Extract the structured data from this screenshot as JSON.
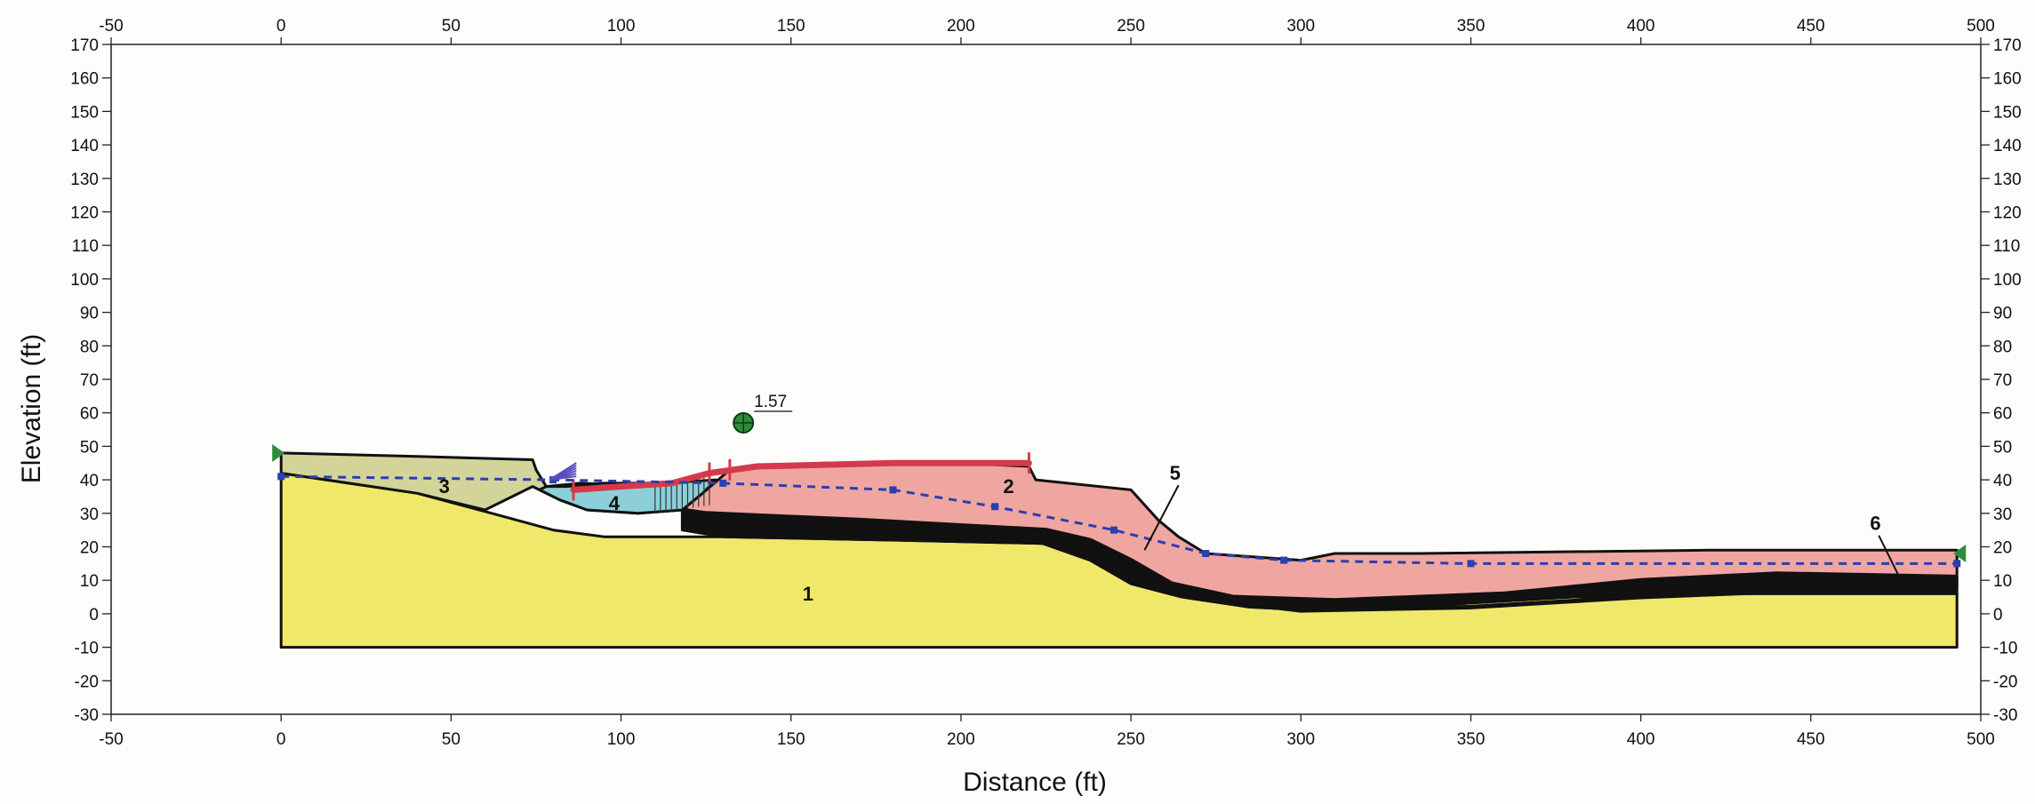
{
  "chart_data": {
    "type": "slope-stability-section",
    "xlabel": "Distance (ft)",
    "ylabel": "Elevation (ft)",
    "xlim": [
      -50,
      500
    ],
    "ylim": [
      -30,
      170
    ],
    "x_ticks": [
      -50,
      0,
      50,
      100,
      150,
      200,
      250,
      300,
      350,
      400,
      450,
      500
    ],
    "y_ticks": [
      -30,
      -20,
      -10,
      0,
      10,
      20,
      30,
      40,
      50,
      60,
      70,
      80,
      90,
      100,
      110,
      120,
      130,
      140,
      150,
      160,
      170
    ],
    "factor_of_safety": {
      "value": "1.57",
      "center": [
        136,
        57
      ]
    },
    "colors": {
      "material_1": "#f0e86a",
      "material_2": "#f0a6a0",
      "material_3": "#d3d49a",
      "material_4": "#8ccfd8",
      "seam": "#111111",
      "water_table": "#2a3fb0",
      "slip_surface": "#d43a4c",
      "center_marker": "#2e8b3a"
    },
    "regions": [
      {
        "id": "1",
        "label": "1",
        "label_pos": [
          155,
          4
        ],
        "polygon": [
          [
            0,
            -10
          ],
          [
            493,
            -10
          ],
          [
            493,
            6
          ],
          [
            430,
            6
          ],
          [
            380,
            5
          ],
          [
            330,
            2
          ],
          [
            305,
            1
          ],
          [
            285,
            2
          ],
          [
            265,
            5
          ],
          [
            250,
            9
          ],
          [
            238,
            16
          ],
          [
            224,
            21
          ],
          [
            180,
            22
          ],
          [
            130,
            23
          ],
          [
            95,
            23
          ],
          [
            80,
            25
          ],
          [
            62,
            30
          ],
          [
            40,
            36
          ],
          [
            0,
            42
          ]
        ]
      },
      {
        "id": "2",
        "label": "2",
        "label_pos": [
          214,
          36
        ],
        "polygon": [
          [
            118,
            31
          ],
          [
            124,
            36
          ],
          [
            132,
            43
          ],
          [
            160,
            45
          ],
          [
            200,
            45
          ],
          [
            220,
            44
          ],
          [
            222,
            40
          ],
          [
            250,
            37
          ],
          [
            258,
            28
          ],
          [
            264,
            23
          ],
          [
            272,
            18
          ],
          [
            300,
            16
          ],
          [
            310,
            18
          ],
          [
            335,
            18
          ],
          [
            420,
            19
          ],
          [
            493,
            19
          ],
          [
            493,
            11
          ],
          [
            440,
            12
          ],
          [
            400,
            10
          ],
          [
            360,
            6
          ],
          [
            310,
            4
          ],
          [
            280,
            5
          ],
          [
            262,
            9
          ],
          [
            250,
            16
          ],
          [
            238,
            22
          ],
          [
            225,
            25
          ],
          [
            170,
            28
          ],
          [
            125,
            29
          ]
        ]
      },
      {
        "id": "3",
        "label": "3",
        "label_pos": [
          48,
          36
        ],
        "polygon": [
          [
            0,
            42
          ],
          [
            0,
            48
          ],
          [
            40,
            47
          ],
          [
            74,
            46
          ],
          [
            75,
            43
          ],
          [
            78,
            38
          ],
          [
            88,
            39
          ],
          [
            110,
            38
          ],
          [
            122,
            35
          ],
          [
            118,
            31
          ],
          [
            105,
            30
          ],
          [
            90,
            31
          ],
          [
            82,
            34
          ],
          [
            76,
            37
          ],
          [
            74,
            38
          ],
          [
            60,
            31
          ],
          [
            40,
            36
          ]
        ]
      },
      {
        "id": "4",
        "label": "4",
        "label_pos": [
          98,
          31
        ],
        "polygon": [
          [
            76,
            37
          ],
          [
            82,
            34
          ],
          [
            90,
            31
          ],
          [
            105,
            30
          ],
          [
            118,
            31
          ],
          [
            124,
            36
          ],
          [
            128,
            40
          ],
          [
            112,
            39
          ],
          [
            95,
            39
          ],
          [
            84,
            38
          ],
          [
            78,
            38
          ]
        ]
      },
      {
        "id": "5",
        "label": "5",
        "label_pos": [
          263,
          40
        ],
        "polygon": [
          [
            118,
            31
          ],
          [
            125,
            30
          ],
          [
            170,
            28
          ],
          [
            225,
            25
          ],
          [
            238,
            22
          ],
          [
            250,
            16
          ],
          [
            262,
            9
          ],
          [
            280,
            5
          ],
          [
            310,
            4
          ],
          [
            360,
            6
          ],
          [
            400,
            10
          ],
          [
            440,
            12
          ],
          [
            493,
            11
          ],
          [
            493,
            6
          ],
          [
            430,
            6
          ],
          [
            380,
            5
          ],
          [
            330,
            2
          ],
          [
            305,
            1
          ],
          [
            285,
            2
          ],
          [
            265,
            5
          ],
          [
            250,
            9
          ],
          [
            238,
            16
          ],
          [
            224,
            21
          ],
          [
            180,
            22
          ],
          [
            130,
            23
          ],
          [
            118,
            25
          ]
        ]
      },
      {
        "id": "6",
        "label": "6",
        "label_pos": [
          469,
          25
        ],
        "polygon": [
          [
            360,
            6
          ],
          [
            400,
            10
          ],
          [
            440,
            12
          ],
          [
            493,
            11
          ],
          [
            493,
            8
          ],
          [
            430,
            8
          ],
          [
            380,
            7
          ]
        ]
      }
    ],
    "seams": [
      [
        [
          118,
          31
        ],
        [
          125,
          30
        ],
        [
          170,
          28
        ],
        [
          225,
          25
        ],
        [
          238,
          22
        ],
        [
          250,
          16
        ],
        [
          262,
          9
        ],
        [
          280,
          5
        ],
        [
          310,
          4
        ],
        [
          360,
          6
        ],
        [
          400,
          10
        ],
        [
          440,
          12
        ],
        [
          493,
          11
        ]
      ],
      [
        [
          120,
          28
        ],
        [
          175,
          26
        ],
        [
          228,
          23
        ],
        [
          242,
          19
        ],
        [
          254,
          12
        ],
        [
          268,
          6
        ],
        [
          290,
          3
        ],
        [
          320,
          3
        ],
        [
          370,
          5
        ],
        [
          420,
          9
        ],
        [
          493,
          8
        ]
      ],
      [
        [
          122,
          26
        ],
        [
          180,
          24
        ],
        [
          230,
          21
        ],
        [
          245,
          16
        ],
        [
          258,
          9
        ],
        [
          275,
          4
        ],
        [
          300,
          1
        ],
        [
          350,
          2
        ],
        [
          400,
          5
        ],
        [
          450,
          7
        ],
        [
          493,
          7
        ]
      ]
    ],
    "water_table": [
      [
        0,
        41
      ],
      [
        80,
        40
      ],
      [
        130,
        39
      ],
      [
        180,
        37
      ],
      [
        210,
        32
      ],
      [
        245,
        25
      ],
      [
        272,
        18
      ],
      [
        295,
        16
      ],
      [
        350,
        15
      ],
      [
        493,
        15
      ]
    ],
    "slip_surface": [
      [
        86,
        37
      ],
      [
        100,
        38
      ],
      [
        115,
        39
      ],
      [
        126,
        42
      ],
      [
        140,
        44
      ],
      [
        180,
        45
      ],
      [
        220,
        45
      ]
    ],
    "callouts": [
      {
        "label": "5",
        "from": [
          264,
          40
        ],
        "to": [
          254,
          19
        ]
      },
      {
        "label": "6",
        "from": [
          470,
          25
        ],
        "to": [
          477,
          9
        ]
      }
    ]
  }
}
